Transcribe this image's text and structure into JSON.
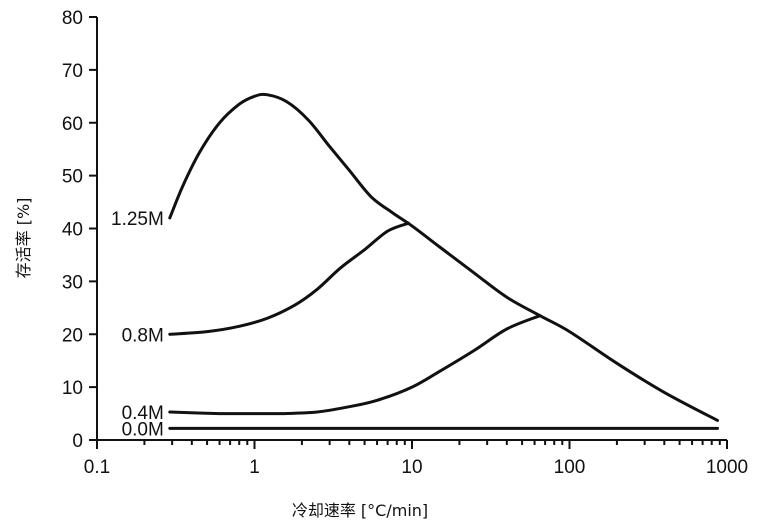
{
  "chart_data": {
    "type": "line",
    "title": "",
    "xlabel": "冷却速率 [°C/min]",
    "ylabel": "存活率 [%]",
    "xscale": "log",
    "xlim": [
      0.1,
      1000
    ],
    "ylim": [
      0,
      80
    ],
    "xticks": [
      0.1,
      1,
      10,
      100,
      1000
    ],
    "xtick_labels": [
      "0.1",
      "1",
      "10",
      "100",
      "1000"
    ],
    "yticks": [
      0,
      10,
      20,
      30,
      40,
      50,
      60,
      70,
      80
    ],
    "ytick_labels": [
      "0",
      "10",
      "20",
      "30",
      "40",
      "50",
      "60",
      "70",
      "80"
    ],
    "grid": false,
    "series": [
      {
        "name": "1.25M",
        "x": [
          0.29,
          0.35,
          0.45,
          0.6,
          0.8,
          1.0,
          1.2,
          1.6,
          2.2,
          3.0,
          4.0,
          5.5,
          7.5,
          10,
          15,
          25,
          40,
          65,
          100,
          200,
          400,
          870
        ],
        "y": [
          42,
          48,
          54.5,
          60,
          63.5,
          65,
          65.3,
          64,
          60.5,
          55.5,
          51,
          46,
          43,
          40.5,
          36.5,
          31.5,
          27,
          23.5,
          20.5,
          14.5,
          9,
          3.7
        ]
      },
      {
        "name": "0.8M",
        "x": [
          0.29,
          0.5,
          0.8,
          1.2,
          1.8,
          2.5,
          3.5,
          5.0,
          7.0,
          9.5
        ],
        "y": [
          20,
          20.5,
          21.5,
          23,
          25.5,
          28.5,
          32.5,
          36,
          39.5,
          41
        ]
      },
      {
        "name": "0.4M",
        "x": [
          0.29,
          0.6,
          1.0,
          1.5,
          2.5,
          4.0,
          6.0,
          10,
          15,
          25,
          40,
          65
        ],
        "y": [
          5.3,
          5,
          5,
          5,
          5.3,
          6.3,
          7.5,
          10,
          13,
          17,
          21,
          23.5
        ]
      },
      {
        "name": "0.0M",
        "x": [
          0.29,
          870
        ],
        "y": [
          2.2,
          2.2
        ]
      }
    ]
  }
}
